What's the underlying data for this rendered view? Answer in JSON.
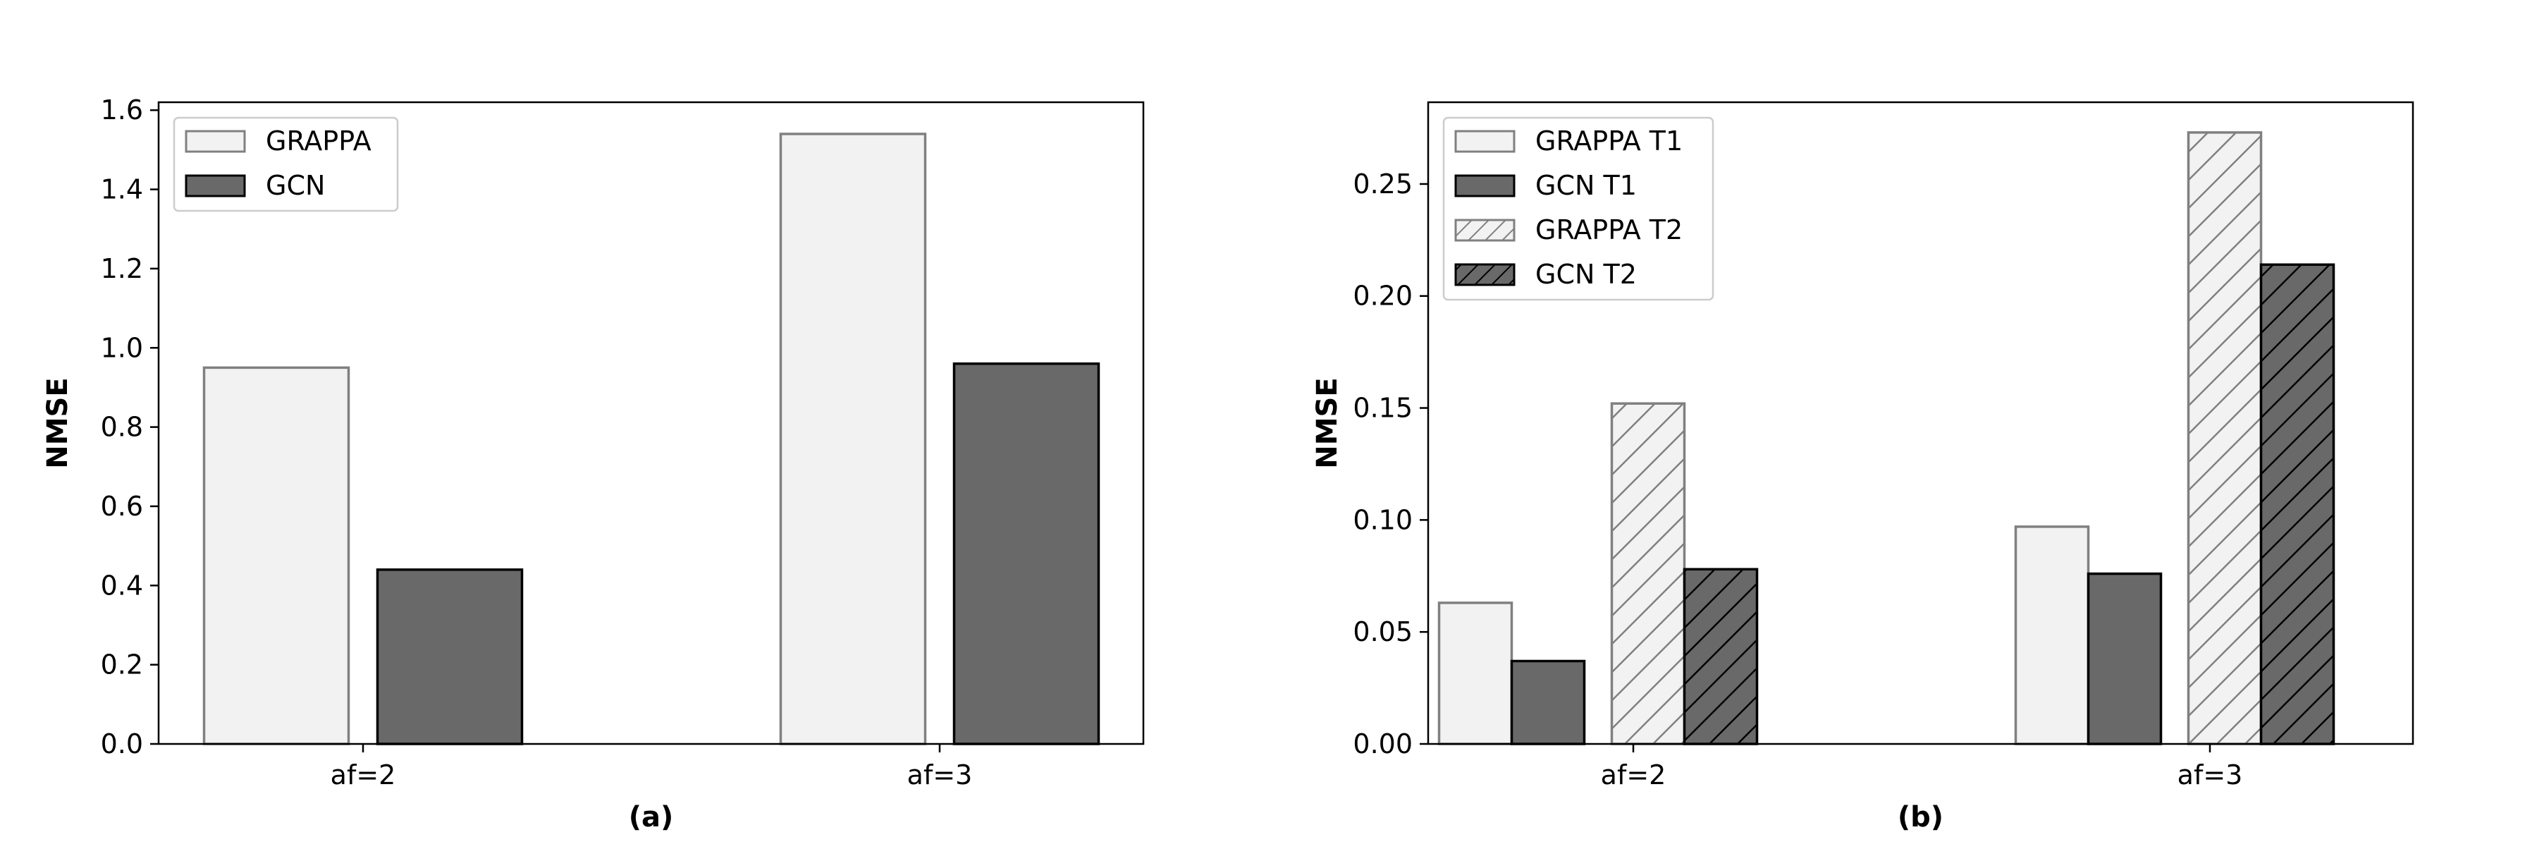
{
  "chart_data": [
    {
      "type": "bar",
      "caption": "(a)",
      "ylabel": "NMSE",
      "xlabel": "",
      "categories": [
        "af=2",
        "af=3"
      ],
      "ylim": [
        0,
        1.62
      ],
      "yticks": [
        "0.0",
        "0.2",
        "0.4",
        "0.6",
        "0.8",
        "1.0",
        "1.2",
        "1.4",
        "1.6"
      ],
      "ytick_values": [
        0,
        0.2,
        0.4,
        0.6,
        0.8,
        1.0,
        1.2,
        1.4,
        1.6
      ],
      "legend_position": "top-left",
      "grid": false,
      "series": [
        {
          "name": "GRAPPA",
          "values": [
            0.95,
            1.54
          ],
          "fill": "#f2f2f2",
          "stroke": "#808080",
          "hatch": false
        },
        {
          "name": "GCN",
          "values": [
            0.44,
            0.96
          ],
          "fill": "#696969",
          "stroke": "#000000",
          "hatch": false
        }
      ]
    },
    {
      "type": "bar",
      "caption": "(b)",
      "ylabel": "NMSE",
      "xlabel": "",
      "categories": [
        "af=2",
        "af=3"
      ],
      "ylim": [
        0,
        0.2865
      ],
      "yticks": [
        "0.00",
        "0.05",
        "0.10",
        "0.15",
        "0.20",
        "0.25"
      ],
      "ytick_values": [
        0,
        0.05,
        0.1,
        0.15,
        0.2,
        0.25
      ],
      "legend_position": "top-left",
      "grid": false,
      "series": [
        {
          "name": "GRAPPA T1",
          "values": [
            0.063,
            0.097
          ],
          "fill": "#f2f2f2",
          "stroke": "#808080",
          "hatch": false
        },
        {
          "name": "GCN T1",
          "values": [
            0.037,
            0.076
          ],
          "fill": "#696969",
          "stroke": "#000000",
          "hatch": false
        },
        {
          "name": "GRAPPA T2",
          "values": [
            0.152,
            0.273
          ],
          "fill": "#f2f2f2",
          "stroke": "#808080",
          "hatch": true
        },
        {
          "name": "GCN T2",
          "values": [
            0.078,
            0.214
          ],
          "fill": "#696969",
          "stroke": "#000000",
          "hatch": true
        }
      ]
    }
  ]
}
